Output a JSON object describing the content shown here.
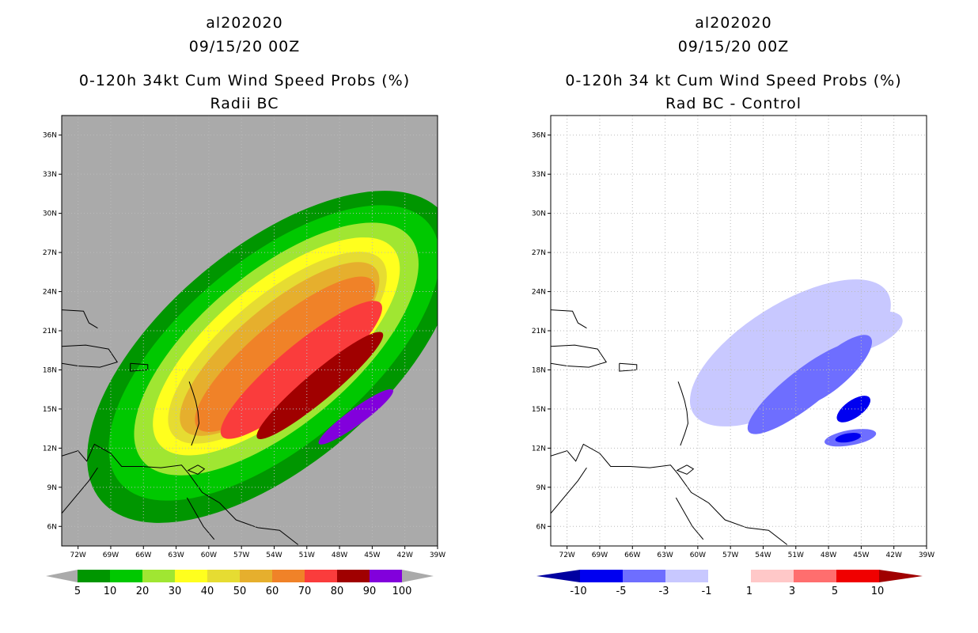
{
  "chart_data": [
    {
      "type": "heatmap",
      "title_lines": [
        "al202020",
        "09/15/20 00Z",
        "0-120h 34kt Cum Wind Speed Probs (%)",
        "Radii BC"
      ],
      "x_ticks": [
        "72W",
        "69W",
        "66W",
        "63W",
        "60W",
        "57W",
        "54W",
        "51W",
        "48W",
        "45W",
        "42W",
        "39W"
      ],
      "y_ticks": [
        "6N",
        "9N",
        "12N",
        "15N",
        "18N",
        "21N",
        "24N",
        "27N",
        "30N",
        "33N",
        "36N"
      ],
      "x_range": [
        -73.5,
        -39.0
      ],
      "y_range": [
        4.5,
        37.5
      ],
      "background": "#aaaaaa",
      "grid": true,
      "levels": [
        {
          "min": 5,
          "color": "#009600",
          "center": [
            -54.2,
            19.0
          ],
          "semi_major": 20.5,
          "semi_minor": 10.0,
          "angle": -40
        },
        {
          "min": 10,
          "color": "#00c800",
          "center": [
            -54.0,
            19.3
          ],
          "semi_major": 18.5,
          "semi_minor": 8.5,
          "angle": -40
        },
        {
          "min": 20,
          "color": "#a0e632",
          "center": [
            -53.8,
            19.6
          ],
          "semi_major": 16.0,
          "semi_minor": 7.0,
          "angle": -40
        },
        {
          "min": 30,
          "color": "#ffff1e",
          "center": [
            -53.8,
            19.8
          ],
          "semi_major": 14.0,
          "semi_minor": 5.7,
          "angle": -40
        },
        {
          "min": 40,
          "color": "#e6dc32",
          "center": [
            -53.7,
            19.7
          ],
          "semi_major": 12.5,
          "semi_minor": 4.7,
          "angle": -40
        },
        {
          "min": 50,
          "color": "#e6af2d",
          "center": [
            -53.5,
            19.6
          ],
          "semi_major": 11.5,
          "semi_minor": 3.9,
          "angle": -40
        },
        {
          "min": 60,
          "color": "#f08228",
          "center": [
            -53.0,
            19.2
          ],
          "semi_major": 10.5,
          "semi_minor": 3.0,
          "angle": -40
        },
        {
          "min": 70,
          "color": "#fa3c3c",
          "center": [
            -51.5,
            18.0
          ],
          "semi_major": 9.5,
          "semi_minor": 2.2,
          "angle": -40
        },
        {
          "min": 80,
          "color": "#a00000",
          "center": [
            -49.8,
            16.8
          ],
          "semi_major": 7.5,
          "semi_minor": 1.3,
          "angle": -40
        },
        {
          "min": 90,
          "color": "#8200dc",
          "center": [
            -46.5,
            14.4
          ],
          "semi_major": 4.2,
          "semi_minor": 0.75,
          "angle": -36
        }
      ],
      "colorbar": {
        "labels": [
          "5",
          "10",
          "20",
          "30",
          "40",
          "50",
          "60",
          "70",
          "80",
          "90",
          "100"
        ],
        "colors": [
          "#009600",
          "#00c800",
          "#32d232",
          "#a0e632",
          "#ffff1e",
          "#e6dc32",
          "#e6af2d",
          "#f08228",
          "#fa3c3c",
          "#a00000",
          "#8200dc"
        ],
        "end_color": "#aaaaaa"
      }
    },
    {
      "type": "heatmap",
      "title_lines": [
        "al202020",
        "09/15/20 00Z",
        "0-120h 34 kt Cum Wind Speed Probs (%)",
        "Rad BC - Control"
      ],
      "x_ticks": [
        "72W",
        "69W",
        "66W",
        "63W",
        "60W",
        "57W",
        "54W",
        "51W",
        "48W",
        "45W",
        "42W",
        "39W"
      ],
      "y_ticks": [
        "6N",
        "9N",
        "12N",
        "15N",
        "18N",
        "21N",
        "24N",
        "27N",
        "30N",
        "33N",
        "36N"
      ],
      "x_range": [
        -73.5,
        -39.0
      ],
      "y_range": [
        4.5,
        37.5
      ],
      "background": "#ffffff",
      "grid": true,
      "blobs": [
        {
          "max": -1,
          "color": "#c8c8ff",
          "center": [
            -51.5,
            19.3
          ],
          "semi_major": 10.5,
          "semi_minor": 4.5,
          "angle": -32
        },
        {
          "max": -1,
          "color": "#c8c8ff",
          "center": [
            -45.0,
            20.8
          ],
          "semi_major": 4.0,
          "semi_minor": 1.6,
          "angle": -20
        },
        {
          "max": -3,
          "color": "#6e6eff",
          "center": [
            -50.2,
            16.6
          ],
          "semi_major": 6.5,
          "semi_minor": 1.7,
          "angle": -38
        },
        {
          "max": -3,
          "color": "#6e6eff",
          "center": [
            -47.5,
            18.0
          ],
          "semi_major": 4.5,
          "semi_minor": 1.5,
          "angle": -42
        },
        {
          "max": -3,
          "color": "#6e6eff",
          "center": [
            -46.0,
            12.8
          ],
          "semi_major": 2.4,
          "semi_minor": 0.7,
          "angle": -10
        },
        {
          "max": -5,
          "color": "#0000f0",
          "center": [
            -45.7,
            15.0
          ],
          "semi_major": 1.8,
          "semi_minor": 0.8,
          "angle": -35
        },
        {
          "max": -5,
          "color": "#0000f0",
          "center": [
            -46.2,
            12.8
          ],
          "semi_major": 1.2,
          "semi_minor": 0.4,
          "angle": -10
        }
      ],
      "colorbar": {
        "labels": [
          "-10",
          "-5",
          "-3",
          "-1",
          "1",
          "3",
          "5",
          "10"
        ],
        "colors": [
          "#0000a0",
          "#0000f0",
          "#6e6eff",
          "#c8c8ff",
          "#ffffff",
          "#ffc8c8",
          "#ff6e6e",
          "#f00000",
          "#a00000"
        ],
        "end_left": "#0000a0",
        "end_right": "#a00000"
      }
    }
  ]
}
